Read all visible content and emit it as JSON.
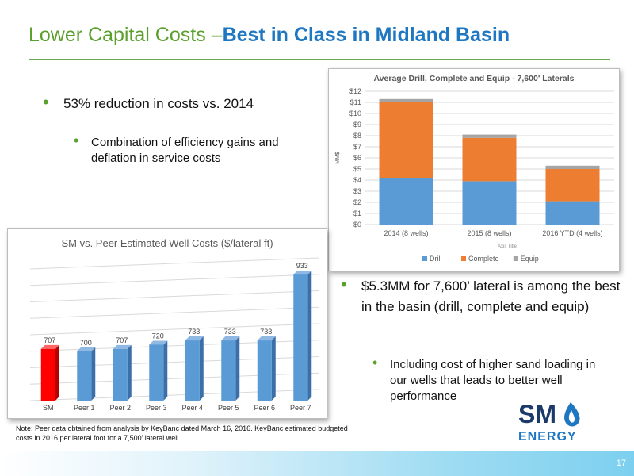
{
  "slide": {
    "title_part1": "Lower Capital Costs –",
    "title_part2": "Best in Class in Midland Basin",
    "page_number": "17"
  },
  "bullets": {
    "b1": "53% reduction in costs vs. 2014",
    "b1_sub": "Combination of efficiency gains and deflation in service costs",
    "b2": "$5.3MM for 7,600’ lateral is among the best in the basin (drill, complete and equip)",
    "b2_sub": "Including cost of higher sand loading in our wells that leads to better well performance"
  },
  "note": "Note: Peer data obtained from analysis by KeyBanc dated March 16, 2016. KeyBanc estimated budgeted costs in 2016 per lateral foot for a 7,500’ lateral well.",
  "logo": {
    "line1": "SM",
    "line2": "ENERGY"
  },
  "colors": {
    "green": "#5aa02c",
    "blue": "#1f77c2",
    "drill": "#5b9bd5",
    "complete": "#ed7d31",
    "equip": "#a5a5a5",
    "sm_bar": "#ff0000",
    "peer_bar": "#5b9bd5"
  },
  "chart_data": [
    {
      "type": "bar",
      "stacked": true,
      "title": "Average Drill, Complete and Equip - 7,600' Laterals",
      "xlabel": "Axis Title",
      "ylabel": "MM$",
      "categories": [
        "2014 (8 wells)",
        "2015 (8 wells)",
        "2016 YTD (4 wells)"
      ],
      "series": [
        {
          "name": "Drill",
          "values": [
            4.2,
            3.9,
            2.1
          ]
        },
        {
          "name": "Complete",
          "values": [
            6.8,
            3.9,
            2.9
          ]
        },
        {
          "name": "Equip",
          "values": [
            0.3,
            0.3,
            0.3
          ]
        }
      ],
      "ylim": [
        0,
        12
      ],
      "yticks": [
        "$0",
        "$1",
        "$2",
        "$3",
        "$4",
        "$5",
        "$6",
        "$7",
        "$8",
        "$9",
        "$10",
        "$11",
        "$12"
      ],
      "grid": true,
      "legend": "bottom"
    },
    {
      "type": "bar",
      "title": "SM vs. Peer Estimated Well Costs ($/lateral ft)",
      "categories": [
        "SM",
        "Peer 1",
        "Peer 2",
        "Peer 3",
        "Peer 4",
        "Peer 5",
        "Peer 6",
        "Peer 7"
      ],
      "values": [
        707,
        700,
        707,
        720,
        733,
        733,
        733,
        933
      ],
      "labels": [
        "707",
        "700",
        "707",
        "720",
        "733",
        "733",
        "733",
        "933"
      ],
      "ylim": [
        550,
        950
      ],
      "grid": true
    }
  ]
}
